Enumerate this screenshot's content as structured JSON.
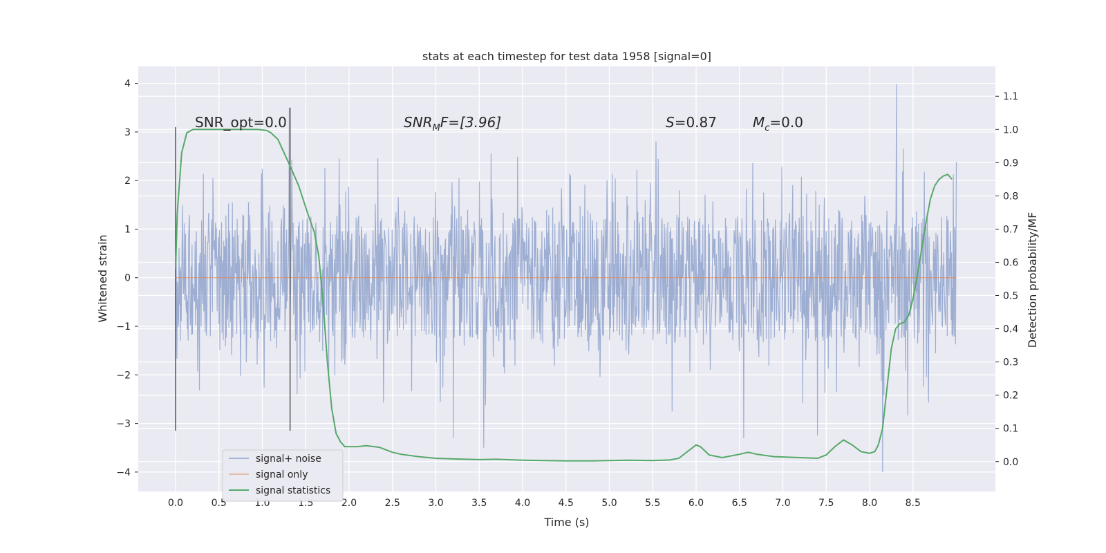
{
  "chart_data": {
    "type": "line",
    "title": "stats at each timestep for test data 1958 [signal=0]",
    "xlabel": "Time (s)",
    "ylabel": "Whitened strain",
    "ylabel_right": "Detection probability/MF",
    "xlim": [
      -0.43,
      9.45
    ],
    "ylim": [
      -4.4,
      4.35
    ],
    "ylim_right": [
      -0.09,
      1.19
    ],
    "x_ticks": [
      "0.0",
      "0.5",
      "1.0",
      "1.5",
      "2.0",
      "2.5",
      "3.0",
      "3.5",
      "4.0",
      "4.5",
      "5.0",
      "5.5",
      "6.0",
      "6.5",
      "7.0",
      "7.5",
      "8.0",
      "8.5"
    ],
    "y_ticks": [
      "4",
      "3",
      "2",
      "1",
      "0",
      "−1",
      "−2",
      "−3",
      "−4"
    ],
    "y_right_ticks": [
      "1.1",
      "1.0",
      "0.9",
      "0.8",
      "0.7",
      "0.6",
      "0.5",
      "0.4",
      "0.3",
      "0.2",
      "0.1",
      "0.0"
    ],
    "vlines": [
      {
        "x": 0.0,
        "ymin": -3.15,
        "ymax": 3.1
      },
      {
        "x": 1.32,
        "ymin": -3.15,
        "ymax": 3.5
      }
    ],
    "annotations": {
      "snr_opt": "SNR_opt=0.0",
      "snr_mf_main": "SNR",
      "snr_mf_sub": "M",
      "snr_mf_rest": "F=[3.96]",
      "s_main": "S",
      "s_rest": "=0.87",
      "mc_main": "M",
      "mc_sub": "c",
      "mc_rest": "=0.0"
    },
    "series": [
      {
        "name": "signal+ noise",
        "color": "#8fa3cc",
        "x_range": [
          0.0,
          9.0
        ],
        "description": "whitened noise, mostly within ±1.3 with spikes to about ±3.5",
        "extremes": [
          {
            "x": 3.2,
            "y": -3.3
          },
          {
            "x": 3.55,
            "y": -3.5
          },
          {
            "x": 8.15,
            "y": -4.0
          },
          {
            "x": 8.31,
            "y": 3.98
          },
          {
            "x": 1.31,
            "y": 3.5
          },
          {
            "x": 6.55,
            "y": -3.3
          },
          {
            "x": 7.4,
            "y": -3.25
          }
        ]
      },
      {
        "name": "signal only",
        "color": "#dd8452",
        "x": [
          0.0,
          9.0
        ],
        "y": [
          0.0,
          0.0
        ]
      },
      {
        "name": "signal statistics",
        "color": "#55a868",
        "axis": "right",
        "x": [
          0.0,
          0.02,
          0.07,
          0.13,
          0.2,
          0.3,
          0.5,
          0.75,
          0.95,
          1.05,
          1.1,
          1.18,
          1.25,
          1.32,
          1.42,
          1.52,
          1.6,
          1.65,
          1.7,
          1.75,
          1.8,
          1.85,
          1.9,
          1.95,
          2.0,
          2.1,
          2.2,
          2.35,
          2.5,
          2.6,
          2.8,
          3.0,
          3.2,
          3.5,
          3.7,
          4.0,
          4.5,
          4.8,
          5.0,
          5.2,
          5.5,
          5.7,
          5.8,
          5.9,
          6.0,
          6.05,
          6.15,
          6.3,
          6.5,
          6.6,
          6.7,
          6.9,
          7.2,
          7.4,
          7.5,
          7.6,
          7.7,
          7.8,
          7.9,
          8.0,
          8.06,
          8.1,
          8.15,
          8.2,
          8.25,
          8.3,
          8.35,
          8.4,
          8.45,
          8.5,
          8.55,
          8.6,
          8.65,
          8.7,
          8.75,
          8.8,
          8.85,
          8.9,
          8.95
        ],
        "y": [
          0.58,
          0.75,
          0.93,
          0.99,
          1.0,
          1.0,
          1.0,
          1.0,
          1.0,
          0.997,
          0.99,
          0.97,
          0.93,
          0.89,
          0.83,
          0.75,
          0.69,
          0.62,
          0.48,
          0.3,
          0.16,
          0.085,
          0.06,
          0.045,
          0.045,
          0.045,
          0.048,
          0.043,
          0.028,
          0.022,
          0.015,
          0.01,
          0.008,
          0.006,
          0.007,
          0.004,
          0.002,
          0.002,
          0.003,
          0.004,
          0.003,
          0.005,
          0.01,
          0.03,
          0.05,
          0.045,
          0.02,
          0.012,
          0.022,
          0.028,
          0.022,
          0.015,
          0.012,
          0.01,
          0.02,
          0.045,
          0.065,
          0.05,
          0.03,
          0.025,
          0.03,
          0.05,
          0.1,
          0.22,
          0.34,
          0.4,
          0.415,
          0.42,
          0.44,
          0.49,
          0.56,
          0.64,
          0.72,
          0.79,
          0.83,
          0.85,
          0.86,
          0.865,
          0.85
        ]
      }
    ],
    "legend_location": "lower-left"
  }
}
